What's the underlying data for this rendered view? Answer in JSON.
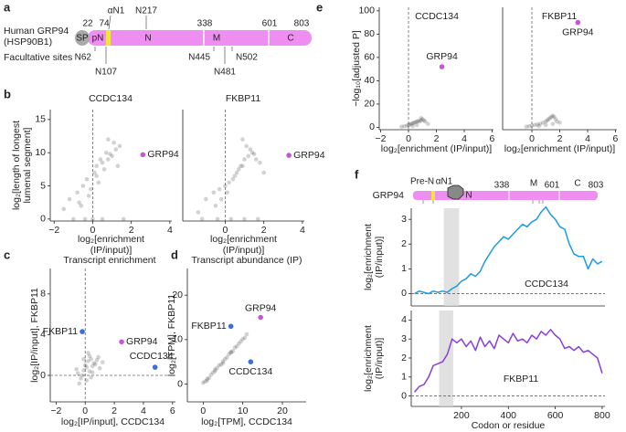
{
  "panel_labels": [
    "a",
    "b",
    "c",
    "d",
    "e",
    "f"
  ],
  "domain_diagram": {
    "protein": [
      "Human GRP94",
      "(HSP90B1)"
    ],
    "domains": [
      "SP",
      "pN",
      "N",
      "M",
      "C"
    ],
    "boundaries": [
      22,
      74,
      338,
      601,
      803
    ],
    "helix": "αN1",
    "site_above": "N217",
    "sites_label": "Facultative sites",
    "sites": [
      "N62",
      "N107",
      "N445",
      "N481",
      "N502"
    ]
  },
  "domain_diagram_f": {
    "protein": "GRP94",
    "labels": [
      "Pre-N",
      "αN1",
      "N",
      "M",
      "C"
    ],
    "boundaries": [
      338,
      601,
      803
    ]
  },
  "chart_data": [
    {
      "type": "scatter",
      "title": "CCDC134",
      "xlabel": [
        "log₂[enrichment",
        "(IP/input)]"
      ],
      "ylabel": [
        "log₂[length of longest",
        "lumenal segment]"
      ],
      "xlim": [
        -2.2,
        4.1
      ],
      "ylim": [
        -0.3,
        16.5
      ],
      "xticks": [
        {
          "value": -2,
          "label": "−2"
        },
        0,
        2,
        4
      ],
      "yticks": [
        0,
        5,
        10,
        15
      ],
      "xref": 0,
      "series": [
        {
          "color": "#333333",
          "x": [
            -1.2,
            -0.8,
            -0.5,
            -0.3,
            -0.1,
            0.1,
            0.2,
            0.4,
            0.5,
            0.7,
            0.8,
            1.0,
            1.2,
            1.4,
            -0.6,
            -0.2,
            0.3,
            0.6,
            0.9,
            1.1,
            -1.0,
            -0.4,
            0.0,
            0.5,
            1.6,
            -1.5,
            -0.7,
            0.2,
            0.8,
            1.3
          ],
          "y": [
            3,
            4,
            5,
            6,
            4.5,
            7,
            8,
            9,
            8.5,
            10,
            9,
            9.5,
            10.5,
            11,
            2,
            3.5,
            5.5,
            7.5,
            9.8,
            11.5,
            0,
            0,
            0,
            0,
            0,
            1.5,
            2.5,
            6.5,
            12,
            8
          ]
        }
      ],
      "annotations": [
        {
          "text": "GRP94",
          "x": 2.6,
          "y": 9.7,
          "color": "#c655d8"
        }
      ]
    },
    {
      "type": "scatter",
      "title": "FKBP11",
      "xlabel": [
        "log₂[enrichment",
        "(IP/input)]"
      ],
      "xlim": [
        -2.2,
        4.1
      ],
      "ylim": [
        -0.3,
        16.5
      ],
      "xticks": [
        0,
        2,
        4
      ],
      "xref": 0,
      "series": [
        {
          "color": "#333333",
          "x": [
            -1.0,
            -0.6,
            -0.3,
            0,
            0.2,
            0.4,
            0.6,
            0.8,
            1.0,
            1.2,
            1.4,
            1.6,
            1.8,
            0.5,
            0.9,
            1.3,
            -0.5,
            0.1,
            0.7,
            1.1,
            -1.2,
            -0.4,
            0.3,
            1.0,
            1.7,
            -1.4,
            -0.2,
            0.9,
            1.5,
            2.0
          ],
          "y": [
            3,
            4,
            4.5,
            5,
            5.5,
            6,
            7,
            8,
            9,
            9.5,
            10,
            9,
            8.5,
            6.5,
            8,
            10.5,
            2,
            4,
            7.5,
            11,
            0,
            0,
            0,
            0,
            0,
            1,
            3,
            12,
            9.8,
            7
          ]
        }
      ],
      "annotations": [
        {
          "text": "GRP94",
          "x": 3.3,
          "y": 9.6,
          "color": "#c655d8"
        }
      ]
    },
    {
      "type": "scatter",
      "title": "Transcript enrichment",
      "xlabel": "log₂[IP/input], CCDC134",
      "ylabel": "log₂[IP/input], FKBP11",
      "xlim": [
        -2.4,
        6.2
      ],
      "ylim": [
        -2.6,
        10.5
      ],
      "xticks": [
        {
          "value": -2,
          "label": "−2"
        },
        0,
        2,
        4,
        6
      ],
      "yticks": [
        0,
        4,
        8
      ],
      "xref": 0,
      "yref": 0,
      "series": [
        {
          "color": "#333333",
          "x": [
            -0.5,
            -0.3,
            -0.1,
            0.0,
            0.1,
            0.2,
            0.3,
            0.4,
            0.5,
            0.6,
            0.8,
            1.0,
            -0.4,
            -0.2,
            0.1,
            0.3,
            0.5,
            0.7,
            -0.6,
            0.2,
            0.9,
            1.2,
            -0.1,
            0.4
          ],
          "y": [
            0.2,
            -0.3,
            0.5,
            1.0,
            0.8,
            1.4,
            0.4,
            1.6,
            0.9,
            1.2,
            1.5,
            0.7,
            -0.8,
            0.0,
            -0.5,
            1.9,
            0.3,
            1.1,
            0.6,
            2.2,
            1.8,
            1.3,
            1.6,
            -0.2
          ]
        }
      ],
      "annotations": [
        {
          "text": "FKBP11",
          "x": -0.2,
          "y": 4.3,
          "color": "#3a6fd8"
        },
        {
          "text": "GRP94",
          "x": 2.5,
          "y": 3.3,
          "color": "#c655d8"
        },
        {
          "text": "CCDC134",
          "x": 4.8,
          "y": 0.8,
          "color": "#3a6fd8"
        }
      ]
    },
    {
      "type": "scatter",
      "title": "Transcript abundance (IP)",
      "xlabel": "log₂[TPM], CCDC134",
      "ylabel": "log₂[TPM], FKBP11",
      "xlim": [
        -4,
        26
      ],
      "ylim": [
        -4,
        26
      ],
      "xticks": [
        0,
        10,
        20
      ],
      "yticks": [
        0,
        10,
        20
      ],
      "series": [
        {
          "color": "#333333",
          "x": [
            0,
            0.5,
            1,
            1.5,
            2,
            2.5,
            3,
            3.5,
            4,
            4.5,
            5,
            5.5,
            6,
            6.5,
            7,
            7.5,
            8,
            8.5,
            9,
            9.5,
            10,
            10.5,
            11,
            1,
            3,
            5,
            7
          ],
          "y": [
            0.3,
            0.6,
            1.2,
            1.4,
            2.1,
            2.6,
            2.9,
            3.6,
            4.2,
            4.4,
            5.1,
            5.6,
            6.0,
            6.7,
            7.1,
            7.4,
            8.2,
            8.5,
            9.1,
            9.6,
            10.1,
            10.4,
            11.2,
            0.8,
            3.3,
            4.7,
            7.2
          ]
        }
      ],
      "annotations": [
        {
          "text": "GRP94",
          "x": 14.5,
          "y": 15,
          "color": "#c655d8"
        },
        {
          "text": "FKBP11",
          "x": 7,
          "y": 13,
          "color": "#3a6fd8"
        },
        {
          "text": "CCDC134",
          "x": 12,
          "y": 5,
          "color": "#3a6fd8"
        }
      ]
    },
    {
      "type": "scatter",
      "title": "CCDC134",
      "xlabel": "log₂[enrichment (IP/input)]",
      "ylabel": "−log₁₀[adjusted P]",
      "xlim": [
        -2.1,
        6.1
      ],
      "ylim": [
        -2,
        103
      ],
      "xticks": [
        {
          "value": -2,
          "label": "−2"
        },
        0,
        2,
        4,
        6
      ],
      "yticks": [
        0,
        20,
        40,
        60,
        80,
        100
      ],
      "xref": 0,
      "series": [
        {
          "color": "#333333",
          "x": [
            -0.5,
            -0.3,
            -0.1,
            0,
            0.1,
            0.2,
            0.3,
            0.4,
            0.5,
            0.6,
            0.7,
            0.8,
            0.9,
            1.0,
            1.1,
            1.2,
            1.4,
            0.3,
            0.6,
            0.9
          ],
          "y": [
            0.5,
            1,
            1.5,
            2,
            2.5,
            3,
            3.5,
            4,
            4.5,
            5,
            5.5,
            5,
            6,
            7,
            6,
            5,
            3,
            1,
            2,
            8
          ]
        }
      ],
      "annotations": [
        {
          "text": "GRP94",
          "x": 2.4,
          "y": 52,
          "color": "#c655d8"
        }
      ]
    },
    {
      "type": "scatter",
      "title": "FKBP11",
      "xlabel": "log₂[enrichment (IP/input)]",
      "xlim": [
        -2.1,
        6.1
      ],
      "ylim": [
        -2,
        103
      ],
      "xticks": [
        0,
        2,
        4,
        6
      ],
      "xref": 0,
      "series": [
        {
          "color": "#333333",
          "x": [
            -0.4,
            -0.2,
            0,
            0.2,
            0.4,
            0.6,
            0.8,
            1.0,
            1.1,
            1.2,
            1.3,
            1.4,
            1.5,
            1.6,
            1.7,
            1.8,
            0.5,
            1.0,
            1.5,
            2.0
          ],
          "y": [
            0.5,
            1,
            1.5,
            2,
            2.5,
            3,
            4,
            5,
            6,
            7,
            8,
            9,
            10,
            9,
            7,
            5,
            1,
            2,
            3,
            4
          ]
        }
      ],
      "annotations": [
        {
          "text": "GRP94",
          "x": 3.3,
          "y": 90,
          "color": "#c655d8"
        }
      ]
    },
    {
      "type": "line",
      "title": "CCDC134",
      "ylabel": [
        "log₂[enrichment",
        "(IP/input)]"
      ],
      "xlim": [
        -14,
        812
      ],
      "ylim": [
        -0.5,
        3.45
      ],
      "yticks": [
        0,
        1,
        2,
        3
      ],
      "yref": 0,
      "shade": [
        125,
        190
      ],
      "x": [
        0,
        20,
        40,
        60,
        80,
        100,
        120,
        140,
        160,
        180,
        200,
        220,
        240,
        260,
        280,
        300,
        320,
        340,
        360,
        380,
        400,
        420,
        440,
        460,
        480,
        500,
        520,
        540,
        560,
        580,
        600,
        620,
        640,
        660,
        680,
        700,
        720,
        740,
        760,
        780,
        800
      ],
      "series": [
        {
          "color": "#1e9be0",
          "values": [
            0.0,
            0.1,
            0.05,
            0.0,
            0.1,
            0.05,
            0.1,
            0.05,
            0.2,
            0.3,
            0.5,
            0.6,
            0.8,
            0.7,
            0.9,
            1.3,
            1.6,
            1.9,
            2.1,
            2.3,
            2.2,
            2.4,
            2.6,
            2.8,
            2.7,
            2.9,
            3.0,
            3.3,
            3.5,
            3.2,
            3.0,
            2.7,
            2.6,
            2.0,
            1.6,
            1.5,
            1.5,
            1.0,
            1.4,
            1.2,
            1.3
          ]
        }
      ]
    },
    {
      "type": "line",
      "title": "FKBP11",
      "xlabel": "Codon or residue",
      "ylabel": [
        "log₂[enrichment",
        "(IP/input)]"
      ],
      "xlim": [
        -14,
        812
      ],
      "ylim": [
        -0.55,
        4.5
      ],
      "xticks": [
        200,
        400,
        600,
        800
      ],
      "yticks": [
        0,
        1,
        2,
        3,
        4
      ],
      "yref": 0,
      "shade": [
        105,
        165
      ],
      "x": [
        0,
        20,
        40,
        60,
        80,
        100,
        120,
        140,
        160,
        180,
        200,
        220,
        240,
        260,
        280,
        300,
        320,
        340,
        360,
        380,
        400,
        420,
        440,
        460,
        480,
        500,
        520,
        540,
        560,
        580,
        600,
        620,
        640,
        660,
        680,
        700,
        720,
        740,
        760,
        780,
        800
      ],
      "series": [
        {
          "color": "#8a3fd6",
          "values": [
            0.2,
            0.5,
            0.6,
            1.0,
            1.6,
            1.7,
            1.8,
            2.2,
            3.0,
            2.8,
            3.0,
            2.6,
            2.9,
            2.4,
            3.1,
            2.6,
            2.9,
            2.5,
            3.2,
            3.0,
            2.8,
            3.3,
            2.9,
            3.0,
            2.8,
            3.2,
            3.0,
            3.4,
            3.2,
            3.5,
            3.2,
            3.0,
            2.5,
            2.6,
            2.4,
            2.6,
            2.3,
            2.4,
            2.2,
            2.0,
            1.2
          ]
        }
      ]
    }
  ]
}
